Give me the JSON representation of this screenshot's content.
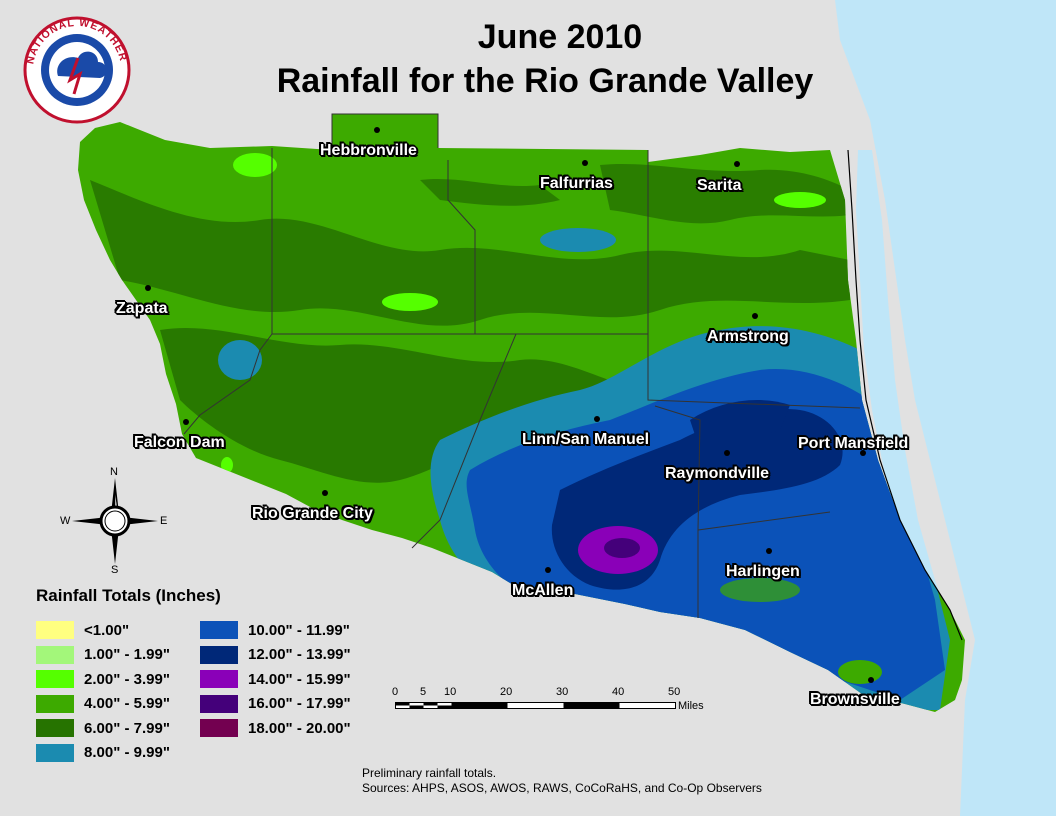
{
  "title": {
    "line1": "June 2010",
    "line2": "Rainfall for the Rio Grande Valley"
  },
  "logo": {
    "text": "NATIONAL WEATHER SERVICE"
  },
  "cities": [
    {
      "name": "Hebbronville",
      "key": "hebbronville"
    },
    {
      "name": "Falfurrias",
      "key": "falfurrias"
    },
    {
      "name": "Sarita",
      "key": "sarita"
    },
    {
      "name": "Zapata",
      "key": "zapata"
    },
    {
      "name": "Armstrong",
      "key": "armstrong"
    },
    {
      "name": "Linn/San Manuel",
      "key": "linn-san-manuel"
    },
    {
      "name": "Port Mansfield",
      "key": "port-mansfield"
    },
    {
      "name": "Falcon Dam",
      "key": "falcon-dam"
    },
    {
      "name": "Raymondville",
      "key": "raymondville"
    },
    {
      "name": "Rio Grande City",
      "key": "rio-grande-city"
    },
    {
      "name": "Harlingen",
      "key": "harlingen"
    },
    {
      "name": "McAllen",
      "key": "mcallen"
    },
    {
      "name": "Brownsville",
      "key": "brownsville"
    }
  ],
  "compass": {
    "n": "N",
    "s": "S",
    "e": "E",
    "w": "W"
  },
  "legend": {
    "title": "Rainfall Totals (Inches)",
    "items": [
      {
        "label": "<1.00\"",
        "color": "#ffff80"
      },
      {
        "label": "1.00\" - 1.99\"",
        "color": "#a3f77a"
      },
      {
        "label": "2.00\" - 3.99\"",
        "color": "#55ff00"
      },
      {
        "label": "4.00\" - 5.99\"",
        "color": "#3daa00"
      },
      {
        "label": "6.00\" - 7.99\"",
        "color": "#267300"
      },
      {
        "label": "8.00\" - 9.99\"",
        "color": "#1b8bb0"
      },
      {
        "label": "10.00\" - 11.99\"",
        "color": "#0b52b8"
      },
      {
        "label": "12.00\" - 13.99\"",
        "color": "#002878"
      },
      {
        "label": "14.00\" - 15.99\"",
        "color": "#8a00b8"
      },
      {
        "label": "16.00\" - 17.99\"",
        "color": "#44007a"
      },
      {
        "label": "18.00\" - 20.00\"",
        "color": "#730050"
      }
    ]
  },
  "scalebar": {
    "ticks": [
      "0",
      "5",
      "10",
      "20",
      "30",
      "40",
      "50"
    ],
    "unit": "Miles"
  },
  "notes": {
    "line1": "Preliminary rainfall totals.",
    "line2": "Sources: AHPS, ASOS, AWOS, RAWS, CoCoRaHS, and Co-Op Observers"
  },
  "colors": {
    "background": "#e1e1e1",
    "water": "#bfe6f8"
  }
}
